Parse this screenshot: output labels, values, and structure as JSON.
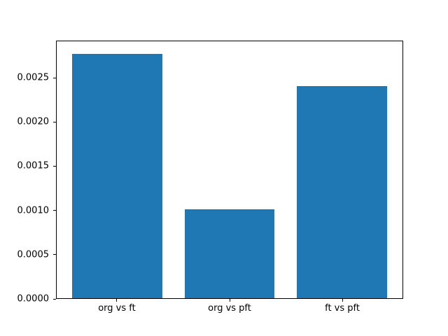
{
  "chart_data": {
    "type": "bar",
    "title": "",
    "xlabel": "",
    "ylabel": "",
    "categories": [
      "org vs ft",
      "org vs pft",
      "ft vs pft"
    ],
    "values": [
      0.00278,
      0.00101,
      0.00241
    ],
    "bar_color": "#1f77b4",
    "bar_width": 0.8,
    "xlim": [
      -0.54,
      2.54
    ],
    "ylim": [
      0,
      0.00292
    ],
    "yticks": [
      0.0,
      0.0005,
      0.001,
      0.0015,
      0.002,
      0.0025
    ],
    "ytick_labels": [
      "0.0000",
      "0.0005",
      "0.0010",
      "0.0015",
      "0.0020",
      "0.0025"
    ],
    "grid": false,
    "legend": null,
    "frame_color": "#000000",
    "background_color": "#ffffff"
  }
}
